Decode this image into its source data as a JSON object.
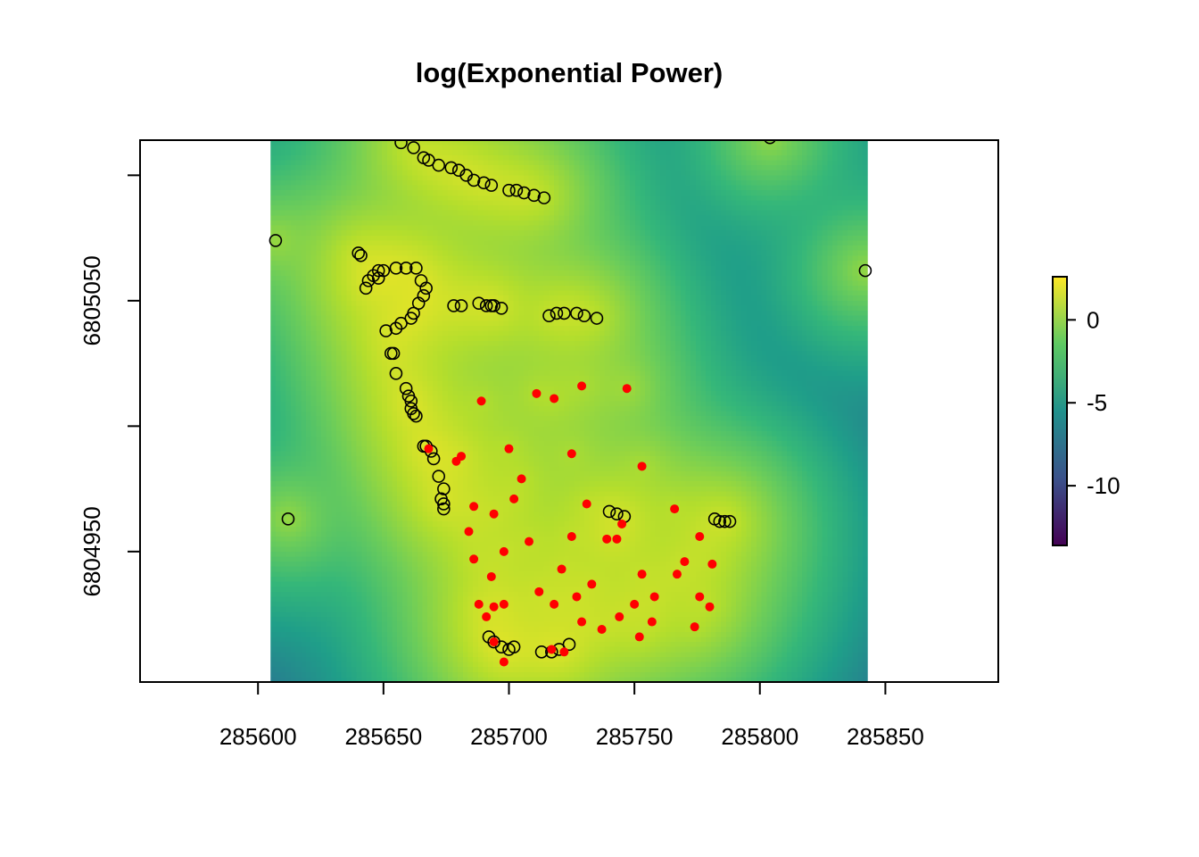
{
  "chart_data": {
    "type": "heatmap",
    "title": "log(Exponential Power)",
    "xlabel": "",
    "ylabel": "",
    "xlim": [
      285553,
      285895
    ],
    "ylim": [
      6804898,
      6805114
    ],
    "x_ticks": [
      285600,
      285650,
      285700,
      285750,
      285800,
      285850
    ],
    "x_tick_labels": [
      "285600",
      "285650",
      "285700",
      "285750",
      "285800",
      "285850"
    ],
    "y_ticks": [
      6804950,
      6805000,
      6805050,
      6805100
    ],
    "y_tick_labels": [
      "6804950",
      "",
      "6805050",
      ""
    ],
    "raster": {
      "x_range": [
        285605,
        285843
      ],
      "y_range": [
        6804898,
        6805114
      ],
      "value_range": [
        -13.6,
        2.6
      ],
      "colormap": "viridis"
    },
    "colorbar": {
      "ticks": [
        0,
        -5,
        -10
      ],
      "tick_labels": [
        "0",
        "-5",
        "-10"
      ]
    },
    "series": [
      {
        "marker": "open-circle",
        "color": "#000000",
        "points": [
          [
            285657,
            6805113
          ],
          [
            285662,
            6805111
          ],
          [
            285666,
            6805107
          ],
          [
            285668,
            6805106
          ],
          [
            285672,
            6805104
          ],
          [
            285677,
            6805103
          ],
          [
            285680,
            6805102
          ],
          [
            285683,
            6805100
          ],
          [
            285686,
            6805098
          ],
          [
            285690,
            6805097
          ],
          [
            285693,
            6805096
          ],
          [
            285700,
            6805094
          ],
          [
            285703,
            6805094
          ],
          [
            285706,
            6805093
          ],
          [
            285710,
            6805092
          ],
          [
            285714,
            6805091
          ],
          [
            285607,
            6805074
          ],
          [
            285804,
            6805115
          ],
          [
            285842,
            6805062
          ],
          [
            285640,
            6805069
          ],
          [
            285641,
            6805068
          ],
          [
            285650,
            6805062
          ],
          [
            285655,
            6805063
          ],
          [
            285659,
            6805063
          ],
          [
            285663,
            6805063
          ],
          [
            285646,
            6805060
          ],
          [
            285648,
            6805062
          ],
          [
            285644,
            6805058
          ],
          [
            285643,
            6805055
          ],
          [
            285648,
            6805059
          ],
          [
            285665,
            6805058
          ],
          [
            285667,
            6805055
          ],
          [
            285666,
            6805052
          ],
          [
            285664,
            6805049
          ],
          [
            285662,
            6805045
          ],
          [
            285661,
            6805043
          ],
          [
            285657,
            6805041
          ],
          [
            285655,
            6805039
          ],
          [
            285651,
            6805038
          ],
          [
            285654,
            6805029
          ],
          [
            285653,
            6805029
          ],
          [
            285655,
            6805021
          ],
          [
            285659,
            6805015
          ],
          [
            285660,
            6805012
          ],
          [
            285661,
            6805010
          ],
          [
            285661,
            6805007
          ],
          [
            285662,
            6805005
          ],
          [
            285663,
            6805004
          ],
          [
            285666,
            6804992
          ],
          [
            285667,
            6804992
          ],
          [
            285669,
            6804990
          ],
          [
            285670,
            6804987
          ],
          [
            285672,
            6804980
          ],
          [
            285674,
            6804975
          ],
          [
            285673,
            6804971
          ],
          [
            285674,
            6804969
          ],
          [
            285674,
            6804967
          ],
          [
            285678,
            6805048
          ],
          [
            285681,
            6805048
          ],
          [
            285688,
            6805049
          ],
          [
            285691,
            6805048
          ],
          [
            285693,
            6805048
          ],
          [
            285694,
            6805048
          ],
          [
            285697,
            6805047
          ],
          [
            285716,
            6805044
          ],
          [
            285719,
            6805045
          ],
          [
            285722,
            6805045
          ],
          [
            285727,
            6805045
          ],
          [
            285730,
            6805044
          ],
          [
            285735,
            6805043
          ],
          [
            285612,
            6804963
          ],
          [
            285740,
            6804966
          ],
          [
            285743,
            6804965
          ],
          [
            285746,
            6804964
          ],
          [
            285782,
            6804963
          ],
          [
            285784,
            6804962
          ],
          [
            285786,
            6804962
          ],
          [
            285788,
            6804962
          ],
          [
            285692,
            6804916
          ],
          [
            285694,
            6804914
          ],
          [
            285697,
            6804912
          ],
          [
            285700,
            6804911
          ],
          [
            285702,
            6804912
          ],
          [
            285713,
            6804910
          ],
          [
            285717,
            6804910
          ],
          [
            285720,
            6804911
          ],
          [
            285724,
            6804913
          ]
        ]
      },
      {
        "marker": "filled-dot",
        "color": "#ff0000",
        "points": [
          [
            285689,
            6805010
          ],
          [
            285711,
            6805013
          ],
          [
            285718,
            6805011
          ],
          [
            285729,
            6805016
          ],
          [
            285747,
            6805015
          ],
          [
            285668,
            6804991
          ],
          [
            285681,
            6804988
          ],
          [
            285679,
            6804986
          ],
          [
            285700,
            6804991
          ],
          [
            285725,
            6804989
          ],
          [
            285753,
            6804984
          ],
          [
            285705,
            6804979
          ],
          [
            285702,
            6804971
          ],
          [
            285686,
            6804968
          ],
          [
            285694,
            6804965
          ],
          [
            285731,
            6804969
          ],
          [
            285766,
            6804967
          ],
          [
            285684,
            6804958
          ],
          [
            285745,
            6804961
          ],
          [
            285776,
            6804956
          ],
          [
            285708,
            6804954
          ],
          [
            285725,
            6804956
          ],
          [
            285739,
            6804955
          ],
          [
            285743,
            6804955
          ],
          [
            285698,
            6804950
          ],
          [
            285686,
            6804947
          ],
          [
            285721,
            6804943
          ],
          [
            285770,
            6804946
          ],
          [
            285781,
            6804945
          ],
          [
            285753,
            6804941
          ],
          [
            285767,
            6804941
          ],
          [
            285693,
            6804940
          ],
          [
            285733,
            6804937
          ],
          [
            285712,
            6804934
          ],
          [
            285758,
            6804932
          ],
          [
            285727,
            6804932
          ],
          [
            285776,
            6804932
          ],
          [
            285688,
            6804929
          ],
          [
            285698,
            6804929
          ],
          [
            285718,
            6804929
          ],
          [
            285750,
            6804929
          ],
          [
            285694,
            6804928
          ],
          [
            285780,
            6804928
          ],
          [
            285691,
            6804924
          ],
          [
            285744,
            6804924
          ],
          [
            285729,
            6804922
          ],
          [
            285757,
            6804922
          ],
          [
            285774,
            6804920
          ],
          [
            285737,
            6804919
          ],
          [
            285752,
            6804916
          ],
          [
            285694,
            6804914
          ],
          [
            285717,
            6804911
          ],
          [
            285722,
            6804910
          ],
          [
            285698,
            6804906
          ]
        ]
      }
    ],
    "grid": false,
    "legend": "none"
  }
}
